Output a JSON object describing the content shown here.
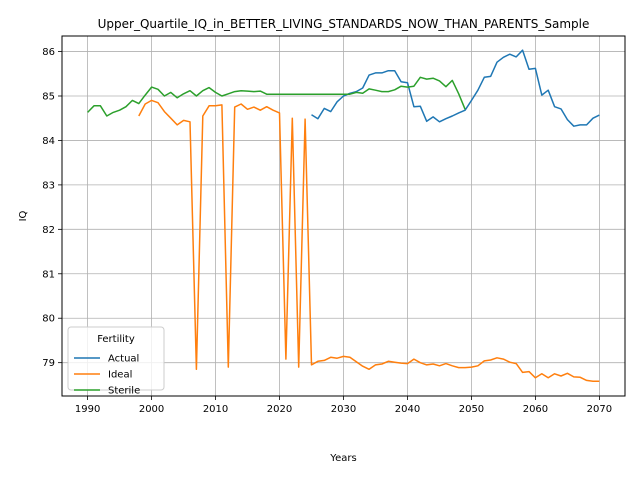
{
  "chart_data": {
    "type": "line",
    "title": "Upper_Quartile_IQ_in_BETTER_LIVING_STANDARDS_NOW_THAN_PARENTS_Sample",
    "xlabel": "Years",
    "ylabel": "IQ",
    "xlim": [
      1986,
      2074
    ],
    "ylim": [
      78.25,
      86.35
    ],
    "xticks": [
      1990,
      2000,
      2010,
      2020,
      2030,
      2040,
      2050,
      2060,
      2070
    ],
    "yticks": [
      79,
      80,
      81,
      82,
      83,
      84,
      85,
      86
    ],
    "grid": true,
    "legend": {
      "title": "Fertility",
      "position": "lower-left"
    },
    "series": [
      {
        "name": "Actual",
        "color": "#1f77b4",
        "x": [
          2025,
          2026,
          2027,
          2028,
          2029,
          2030,
          2031,
          2032,
          2033,
          2034,
          2035,
          2036,
          2037,
          2038,
          2039,
          2040,
          2041,
          2042,
          2043,
          2044,
          2045,
          2046,
          2047,
          2048,
          2049,
          2050,
          2051,
          2052,
          2053,
          2054,
          2055,
          2056,
          2057,
          2058,
          2059,
          2060,
          2061,
          2062,
          2063,
          2064,
          2065,
          2066,
          2067,
          2068,
          2069,
          2070
        ],
        "y": [
          84.58,
          84.49,
          84.72,
          84.65,
          84.87,
          85.0,
          85.06,
          85.1,
          85.18,
          85.47,
          85.52,
          85.52,
          85.57,
          85.57,
          85.32,
          85.3,
          84.76,
          84.77,
          84.43,
          84.53,
          84.42,
          84.49,
          84.55,
          84.62,
          84.68,
          84.9,
          85.13,
          85.42,
          85.44,
          85.76,
          85.87,
          85.94,
          85.88,
          86.03,
          85.6,
          85.62,
          85.02,
          85.13,
          84.76,
          84.71,
          84.47,
          84.32,
          84.35,
          84.35,
          84.5,
          84.57
        ]
      },
      {
        "name": "Ideal",
        "color": "#ff7f0e",
        "x": [
          1998,
          1999,
          2000,
          2001,
          2002,
          2003,
          2004,
          2005,
          2006,
          2007,
          2008,
          2009,
          2010,
          2011,
          2012,
          2013,
          2014,
          2015,
          2016,
          2017,
          2018,
          2019,
          2020,
          2021,
          2022,
          2023,
          2024,
          2025,
          2026,
          2027,
          2028,
          2029,
          2030,
          2031,
          2032,
          2033,
          2034,
          2035,
          2036,
          2037,
          2038,
          2039,
          2040,
          2041,
          2042,
          2043,
          2044,
          2045,
          2046,
          2047,
          2048,
          2049,
          2050,
          2051,
          2052,
          2053,
          2054,
          2055,
          2056,
          2057,
          2058,
          2059,
          2060,
          2061,
          2062,
          2063,
          2064,
          2065,
          2066,
          2067,
          2068,
          2069,
          2070
        ],
        "y": [
          84.55,
          84.82,
          84.9,
          84.85,
          84.65,
          84.5,
          84.35,
          84.45,
          84.42,
          78.85,
          84.55,
          84.78,
          84.78,
          84.8,
          78.9,
          84.75,
          84.82,
          84.7,
          84.75,
          84.68,
          84.76,
          84.68,
          84.62,
          79.08,
          84.5,
          78.9,
          84.48,
          78.95,
          79.03,
          79.05,
          79.12,
          79.1,
          79.14,
          79.12,
          79.02,
          78.92,
          78.85,
          78.95,
          78.97,
          79.03,
          79.01,
          78.99,
          78.98,
          79.08,
          79.0,
          78.95,
          78.97,
          78.93,
          78.98,
          78.93,
          78.89,
          78.89,
          78.9,
          78.93,
          79.04,
          79.06,
          79.11,
          79.08,
          79.01,
          78.98,
          78.78,
          78.8,
          78.66,
          78.75,
          78.66,
          78.75,
          78.7,
          78.76,
          78.68,
          78.67,
          78.6,
          78.58,
          78.58
        ]
      },
      {
        "name": "Sterile",
        "color": "#2ca02c",
        "x": [
          1990,
          1991,
          1992,
          1993,
          1994,
          1995,
          1996,
          1997,
          1998,
          1999,
          2000,
          2001,
          2002,
          2003,
          2004,
          2005,
          2006,
          2007,
          2008,
          2009,
          2010,
          2011,
          2012,
          2013,
          2014,
          2015,
          2016,
          2017,
          2018,
          2019,
          2020,
          2021,
          2022,
          2023,
          2024,
          2025,
          2026,
          2027,
          2028,
          2029,
          2030,
          2031,
          2032,
          2033,
          2034,
          2035,
          2036,
          2037,
          2038,
          2039,
          2040,
          2041,
          2042,
          2043,
          2044,
          2045,
          2046,
          2047,
          2048,
          2049
        ],
        "y": [
          84.63,
          84.78,
          84.78,
          84.55,
          84.63,
          84.68,
          84.76,
          84.9,
          84.83,
          85.02,
          85.2,
          85.15,
          85.0,
          85.08,
          84.96,
          85.05,
          85.12,
          85.0,
          85.12,
          85.19,
          85.08,
          85.0,
          85.05,
          85.1,
          85.12,
          85.11,
          85.1,
          85.11,
          85.04,
          85.04,
          85.04,
          85.04,
          85.04,
          85.04,
          85.04,
          85.04,
          85.04,
          85.04,
          85.04,
          85.04,
          85.04,
          85.04,
          85.08,
          85.06,
          85.16,
          85.13,
          85.1,
          85.1,
          85.14,
          85.22,
          85.2,
          85.22,
          85.42,
          85.38,
          85.4,
          85.34,
          85.21,
          85.35,
          85.05,
          84.7
        ]
      }
    ]
  }
}
